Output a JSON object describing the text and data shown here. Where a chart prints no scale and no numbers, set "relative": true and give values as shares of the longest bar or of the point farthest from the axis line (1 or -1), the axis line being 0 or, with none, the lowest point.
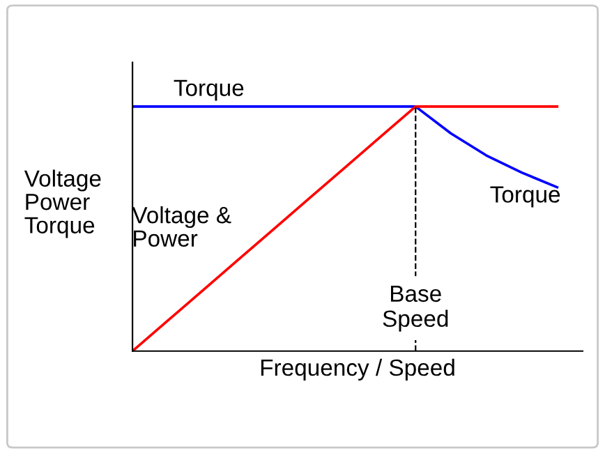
{
  "chart_data": {
    "type": "line",
    "relative": true,
    "xlabel": "Frequency / Speed",
    "ylabel": "Voltage\nPower\nTorque",
    "categories": [
      null,
      null,
      null,
      null,
      null,
      null,
      null,
      null,
      null,
      null,
      null,
      null,
      null
    ],
    "series": [
      {
        "name": "Torque",
        "color": "#0000ff",
        "values": [
          1,
          1,
          1,
          1,
          1,
          1,
          1,
          1,
          1,
          0.89,
          0.8,
          0.73,
          0.67
        ]
      },
      {
        "name": "Voltage &\nPower",
        "color": "#ff0000",
        "values": [
          0,
          0.125,
          0.25,
          0.375,
          0.5,
          0.625,
          0.75,
          0.875,
          1,
          1,
          1,
          1,
          1
        ]
      }
    ],
    "annotations": [
      {
        "text": "Torque",
        "y": 0.74
      },
      "Base\nSpeed"
    ],
    "legend": false,
    "line_style": "solid"
  }
}
